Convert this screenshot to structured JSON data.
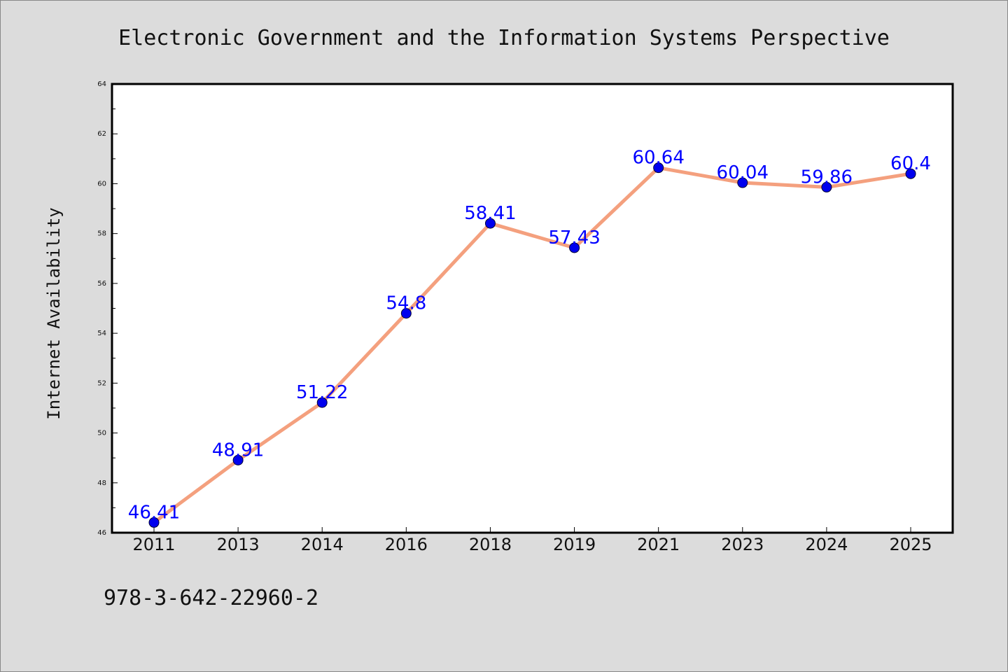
{
  "chart_data": {
    "type": "line",
    "title": "Electronic Government and the Information Systems Perspective",
    "ylabel": "Internet Availability",
    "xlabel": "",
    "footer": "978-3-642-22960-2",
    "categories": [
      "2011",
      "2013",
      "2014",
      "2016",
      "2018",
      "2019",
      "2021",
      "2023",
      "2024",
      "2025"
    ],
    "series": [
      {
        "values": [
          46.41,
          48.91,
          51.22,
          54.8,
          58.41,
          57.43,
          60.64,
          60.04,
          59.86,
          60.4
        ],
        "labels": [
          "46.41",
          "48.91",
          "51.22",
          "54.8",
          "58.41",
          "57.43",
          "60.64",
          "60.04",
          "59.86",
          "60.4"
        ]
      }
    ],
    "ylim": [
      46,
      64
    ],
    "yticks": [
      "46",
      "48",
      "50",
      "52",
      "54",
      "56",
      "58",
      "60",
      "62",
      "64"
    ],
    "grid": false,
    "legend": "none",
    "colors": {
      "line": "#f4a07e",
      "marker": "#0000ee",
      "label": "#0000ff",
      "background": "#dcdcdc",
      "plot_background": "#ffffff"
    }
  }
}
